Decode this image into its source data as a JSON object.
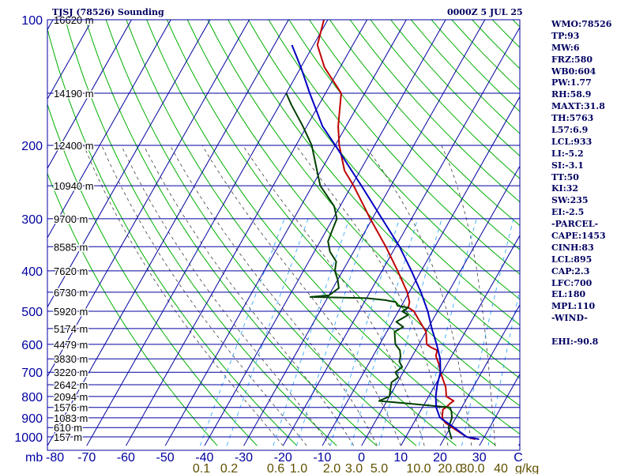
{
  "title": "TJSJ (78526) Sounding",
  "datetime": "0000Z  5 JUL 25",
  "colors": {
    "background": "#ffffff",
    "isobar": "#0000a0",
    "isotherm": "#0000a0",
    "dry_adiabat": "#00b000",
    "moist_adiabat": "#404040",
    "mixing_ratio": "#20a0ff",
    "temperature": "#c00000",
    "dewpoint": "#004000",
    "parcel": "#0000c0",
    "pressure_label": "#0000a0",
    "temp_label": "#0000a0",
    "mixing_label": "#605000",
    "height_label": "#000000",
    "text": "#000060"
  },
  "side_panel": [
    "WMO:78526",
    "TP:93",
    "MW:6",
    "FRZ:580",
    "WB0:604",
    "PW:1.77",
    "RH:58.9",
    "MAXT:31.8",
    "TH:5763",
    "L57:6.9",
    "LCL:933",
    "LI:-5.2",
    "SI:-3.1",
    "TT:50",
    "KI:32",
    "SW:235",
    "EI:-2.5",
    "-PARCEL-",
    "CAPE:1453",
    "CINH:83",
    "LCL:895",
    "CAP:2.3",
    "LFC:700",
    "EL:180",
    "MPL:110",
    "-WIND-",
    "",
    "EHI:-90.8"
  ],
  "chart_data": {
    "type": "line",
    "title": "TJSJ (78526) Sounding",
    "valid_time": "0000Z  5 JUL 25",
    "y_axis": {
      "unit_label": "mb",
      "scale": "log",
      "range": [
        1000,
        100
      ],
      "ticks": [
        "100",
        "200",
        "300",
        "400",
        "500",
        "600",
        "700",
        "800",
        "900",
        "1000"
      ]
    },
    "x_axis": {
      "unit_label": "C",
      "range": [
        -80,
        40
      ],
      "ticks": [
        "-80",
        "-70",
        "-60",
        "-50",
        "-40",
        "-30",
        "-20",
        "-10",
        "0",
        "10",
        "20",
        "30"
      ]
    },
    "mixing_ratio_axis": {
      "unit_label": "g/kg",
      "ticks": [
        "0.1",
        "0.2",
        "0.6",
        "1.0",
        "2.0",
        "3.0",
        "5.0",
        "10.0",
        "20.0",
        "30.0",
        "40"
      ]
    },
    "height_labels": [
      {
        "p": 100,
        "label": "16620 m"
      },
      {
        "p": 150,
        "label": "14190 m"
      },
      {
        "p": 200,
        "label": "12400 m"
      },
      {
        "p": 250,
        "label": "10940 m"
      },
      {
        "p": 300,
        "label": "9700 m"
      },
      {
        "p": 350,
        "label": "8585 m"
      },
      {
        "p": 400,
        "label": "7620 m"
      },
      {
        "p": 450,
        "label": "6730 m"
      },
      {
        "p": 500,
        "label": "5920 m"
      },
      {
        "p": 550,
        "label": "5174 m"
      },
      {
        "p": 600,
        "label": "4479 m"
      },
      {
        "p": 650,
        "label": "3830 m"
      },
      {
        "p": 700,
        "label": "3220 m"
      },
      {
        "p": 750,
        "label": "2642 m"
      },
      {
        "p": 800,
        "label": "2094 m"
      },
      {
        "p": 850,
        "label": "1576 m"
      },
      {
        "p": 900,
        "label": "1083 m"
      },
      {
        "p": 950,
        "label": "610 m"
      },
      {
        "p": 1000,
        "label": "157 m"
      }
    ],
    "series": [
      {
        "key": "temperature",
        "points": [
          [
            1013,
            28
          ],
          [
            1000,
            25.5
          ],
          [
            950,
            20.5
          ],
          [
            925,
            18
          ],
          [
            900,
            16.5
          ],
          [
            860,
            15.5
          ],
          [
            850,
            16
          ],
          [
            830,
            16.5
          ],
          [
            820,
            17
          ],
          [
            800,
            14.5
          ],
          [
            760,
            13
          ],
          [
            700,
            9.5
          ],
          [
            670,
            8
          ],
          [
            640,
            6
          ],
          [
            620,
            5.5
          ],
          [
            610,
            3.5
          ],
          [
            600,
            2
          ],
          [
            560,
            0
          ],
          [
            520,
            -4
          ],
          [
            500,
            -6
          ],
          [
            490,
            -8
          ],
          [
            475,
            -8.5
          ],
          [
            450,
            -10.5
          ],
          [
            400,
            -16
          ],
          [
            350,
            -22.5
          ],
          [
            300,
            -30.5
          ],
          [
            250,
            -39.5
          ],
          [
            230,
            -44
          ],
          [
            200,
            -49
          ],
          [
            180,
            -52
          ],
          [
            150,
            -56
          ],
          [
            130,
            -64
          ],
          [
            115,
            -69
          ],
          [
            100,
            -71
          ]
        ]
      },
      {
        "key": "dewpoint",
        "points": [
          [
            1013,
            22
          ],
          [
            1000,
            21.5
          ],
          [
            950,
            19.5
          ],
          [
            900,
            19
          ],
          [
            870,
            18
          ],
          [
            850,
            17
          ],
          [
            835,
            8
          ],
          [
            820,
            -2
          ],
          [
            810,
            -1
          ],
          [
            800,
            0
          ],
          [
            780,
            -0.5
          ],
          [
            760,
            -1
          ],
          [
            740,
            -1.5
          ],
          [
            720,
            -0.5
          ],
          [
            700,
            -2
          ],
          [
            680,
            -1
          ],
          [
            660,
            -2.5
          ],
          [
            640,
            -3
          ],
          [
            620,
            -4
          ],
          [
            600,
            -6
          ],
          [
            580,
            -7
          ],
          [
            560,
            -8
          ],
          [
            545,
            -6.5
          ],
          [
            530,
            -9
          ],
          [
            510,
            -7
          ],
          [
            500,
            -9
          ],
          [
            490,
            -8
          ],
          [
            485,
            -11
          ],
          [
            475,
            -12
          ],
          [
            470,
            -15
          ],
          [
            465,
            -20
          ],
          [
            462,
            -34.5
          ],
          [
            458,
            -30
          ],
          [
            452,
            -29.5
          ],
          [
            440,
            -28.5
          ],
          [
            420,
            -30
          ],
          [
            400,
            -32
          ],
          [
            380,
            -33
          ],
          [
            360,
            -36
          ],
          [
            340,
            -38
          ],
          [
            320,
            -38.5
          ],
          [
            300,
            -39
          ],
          [
            280,
            -41.5
          ],
          [
            250,
            -48
          ],
          [
            230,
            -51
          ],
          [
            200,
            -56
          ],
          [
            180,
            -61
          ],
          [
            160,
            -67
          ],
          [
            150,
            -70
          ]
        ]
      },
      {
        "key": "parcel",
        "points": [
          [
            1013,
            29
          ],
          [
            1000,
            25.5
          ],
          [
            950,
            21
          ],
          [
            900,
            16
          ],
          [
            895,
            15.7
          ],
          [
            850,
            13.5
          ],
          [
            800,
            11.8
          ],
          [
            750,
            10.5
          ],
          [
            700,
            9.5
          ],
          [
            650,
            7.5
          ],
          [
            600,
            4.5
          ],
          [
            550,
            1
          ],
          [
            500,
            -2.5
          ],
          [
            450,
            -7
          ],
          [
            400,
            -12.5
          ],
          [
            350,
            -19
          ],
          [
            300,
            -27.5
          ],
          [
            250,
            -37.5
          ],
          [
            200,
            -50
          ],
          [
            180,
            -56
          ],
          [
            150,
            -64
          ],
          [
            130,
            -70
          ],
          [
            115,
            -75.5
          ]
        ]
      }
    ]
  }
}
